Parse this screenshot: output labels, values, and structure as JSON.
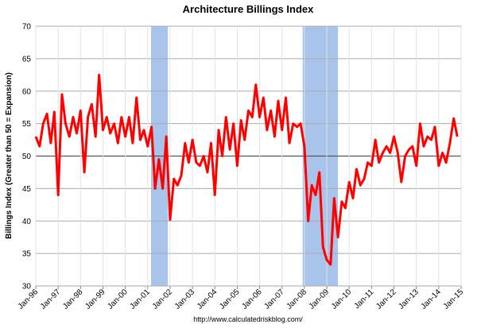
{
  "chart_data": {
    "type": "line",
    "title": "Architecture Billings Index",
    "ylabel": "Billings Index (Greater than 50 = Expansion)",
    "footer": "http://www.calculatedriskblog.com/",
    "xlim": [
      1996,
      2015
    ],
    "xticks": [
      {
        "value": 1996,
        "label": "Jan-96"
      },
      {
        "value": 1997,
        "label": "Jan-97"
      },
      {
        "value": 1998,
        "label": "Jan-98"
      },
      {
        "value": 1999,
        "label": "Jan-99"
      },
      {
        "value": 2000,
        "label": "Jan-00"
      },
      {
        "value": 2001,
        "label": "Jan-01"
      },
      {
        "value": 2002,
        "label": "Jan-02"
      },
      {
        "value": 2003,
        "label": "Jan-03"
      },
      {
        "value": 2004,
        "label": "Jan-04"
      },
      {
        "value": 2005,
        "label": "Jan-05"
      },
      {
        "value": 2006,
        "label": "Jan-06"
      },
      {
        "value": 2007,
        "label": "Jan-07"
      },
      {
        "value": 2008,
        "label": "Jan-08"
      },
      {
        "value": 2009,
        "label": "Jan-09"
      },
      {
        "value": 2010,
        "label": "Jan-10"
      },
      {
        "value": 2011,
        "label": "Jan-11"
      },
      {
        "value": 2012,
        "label": "Jan-12"
      },
      {
        "value": 2013,
        "label": "Jan-13"
      },
      {
        "value": 2014,
        "label": "Jan-14"
      },
      {
        "value": 2015,
        "label": "Jan-15"
      }
    ],
    "ylim": [
      30,
      70
    ],
    "yticks": [
      30,
      35,
      40,
      45,
      50,
      55,
      60,
      65,
      70
    ],
    "grid": true,
    "reference_line": 50,
    "shaded_periods": [
      [
        2001.15,
        2001.9
      ],
      [
        2007.92,
        2009.5
      ]
    ],
    "shade_color": "#a9c4eb",
    "x": [
      1996,
      1996.17,
      1996.33,
      1996.5,
      1996.67,
      1996.83,
      1997,
      1997.17,
      1997.33,
      1997.5,
      1997.67,
      1997.83,
      1998,
      1998.17,
      1998.33,
      1998.5,
      1998.67,
      1998.83,
      1999,
      1999.17,
      1999.33,
      1999.5,
      1999.67,
      1999.83,
      2000,
      2000.17,
      2000.33,
      2000.5,
      2000.67,
      2000.83,
      2001,
      2001.17,
      2001.33,
      2001.5,
      2001.67,
      2001.83,
      2002,
      2002.17,
      2002.33,
      2002.5,
      2002.67,
      2002.83,
      2003,
      2003.17,
      2003.33,
      2003.5,
      2003.67,
      2003.83,
      2004,
      2004.17,
      2004.33,
      2004.5,
      2004.67,
      2004.83,
      2005,
      2005.17,
      2005.33,
      2005.5,
      2005.67,
      2005.83,
      2006,
      2006.17,
      2006.33,
      2006.5,
      2006.67,
      2006.83,
      2007,
      2007.17,
      2007.33,
      2007.5,
      2007.67,
      2007.83,
      2008,
      2008.17,
      2008.33,
      2008.5,
      2008.67,
      2008.83,
      2009,
      2009.17,
      2009.33,
      2009.5,
      2009.67,
      2009.83,
      2010,
      2010.17,
      2010.33,
      2010.5,
      2010.67,
      2010.83,
      2011,
      2011.17,
      2011.33,
      2011.5,
      2011.67,
      2011.83,
      2012,
      2012.17,
      2012.33,
      2012.5,
      2012.67,
      2012.83,
      2013,
      2013.17,
      2013.33,
      2013.5,
      2013.67,
      2013.83,
      2014,
      2014.17,
      2014.33,
      2014.5,
      2014.67,
      2014.83
    ],
    "series": [
      {
        "name": "Architecture Billings Index",
        "color": "#ff0000",
        "values": [
          53,
          51.5,
          55,
          56.5,
          52,
          56.8,
          44,
          59.5,
          55,
          53,
          56,
          53.5,
          57,
          47.5,
          56,
          58,
          53,
          62.5,
          54,
          56,
          53.5,
          55,
          52,
          56,
          53,
          56,
          52,
          59,
          52.5,
          54,
          51.5,
          54.5,
          45,
          49.5,
          45,
          53,
          40.2,
          46.5,
          45.5,
          47,
          52,
          49,
          52.5,
          49,
          48.5,
          50,
          47.5,
          52,
          44,
          54,
          50,
          56,
          51,
          55,
          48.5,
          55.5,
          52.5,
          57,
          56,
          61,
          56,
          59,
          54,
          57,
          53,
          58.5,
          54,
          59,
          52,
          55,
          54.5,
          55,
          51.5,
          40,
          45.5,
          44,
          47.5,
          36,
          34,
          33.3,
          43.5,
          37.5,
          43,
          42,
          46,
          43.5,
          48,
          45.5,
          46.5,
          49,
          48.5,
          52.5,
          49,
          50.5,
          51.5,
          50.5,
          53,
          50.5,
          46,
          50,
          51,
          51.5,
          48.5,
          55,
          51.5,
          53,
          52.5,
          54.5,
          48.5,
          50.5,
          49,
          52,
          55.8,
          53
        ]
      }
    ]
  }
}
